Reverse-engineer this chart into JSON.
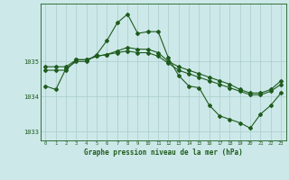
{
  "title": "Graphe pression niveau de la mer (hPa)",
  "background_color": "#cce8e8",
  "grid_color": "#aacccc",
  "line_color": "#1e5c1e",
  "x_labels": [
    "0",
    "1",
    "2",
    "3",
    "4",
    "5",
    "6",
    "7",
    "8",
    "9",
    "10",
    "11",
    "12",
    "13",
    "14",
    "15",
    "16",
    "17",
    "18",
    "19",
    "20",
    "21",
    "22",
    "23"
  ],
  "hours": [
    0,
    1,
    2,
    3,
    4,
    5,
    6,
    7,
    8,
    9,
    10,
    11,
    12,
    13,
    14,
    15,
    16,
    17,
    18,
    19,
    20,
    21,
    22,
    23
  ],
  "line1": [
    1034.3,
    1034.2,
    1034.8,
    1035.0,
    1035.0,
    1035.2,
    1035.6,
    1036.1,
    1036.35,
    1035.8,
    1035.85,
    1035.85,
    1035.1,
    1034.6,
    1034.3,
    1034.25,
    1033.75,
    1033.45,
    1033.35,
    1033.25,
    1033.1,
    1033.5,
    1033.75,
    1034.1
  ],
  "line2": [
    1034.75,
    1034.75,
    1034.75,
    1035.05,
    1035.05,
    1035.15,
    1035.2,
    1035.25,
    1035.3,
    1035.25,
    1035.25,
    1035.15,
    1034.95,
    1034.75,
    1034.65,
    1034.55,
    1034.45,
    1034.35,
    1034.25,
    1034.15,
    1034.05,
    1034.05,
    1034.15,
    1034.35
  ],
  "line3": [
    1034.85,
    1034.85,
    1034.85,
    1035.05,
    1035.05,
    1035.15,
    1035.2,
    1035.3,
    1035.4,
    1035.35,
    1035.35,
    1035.25,
    1035.0,
    1034.85,
    1034.75,
    1034.65,
    1034.55,
    1034.45,
    1034.35,
    1034.2,
    1034.1,
    1034.1,
    1034.2,
    1034.45
  ],
  "ylim": [
    1032.75,
    1036.65
  ],
  "yticks": [
    1033,
    1034,
    1035
  ],
  "marker": "D",
  "marker_size": 2.0,
  "linewidth": 0.8
}
